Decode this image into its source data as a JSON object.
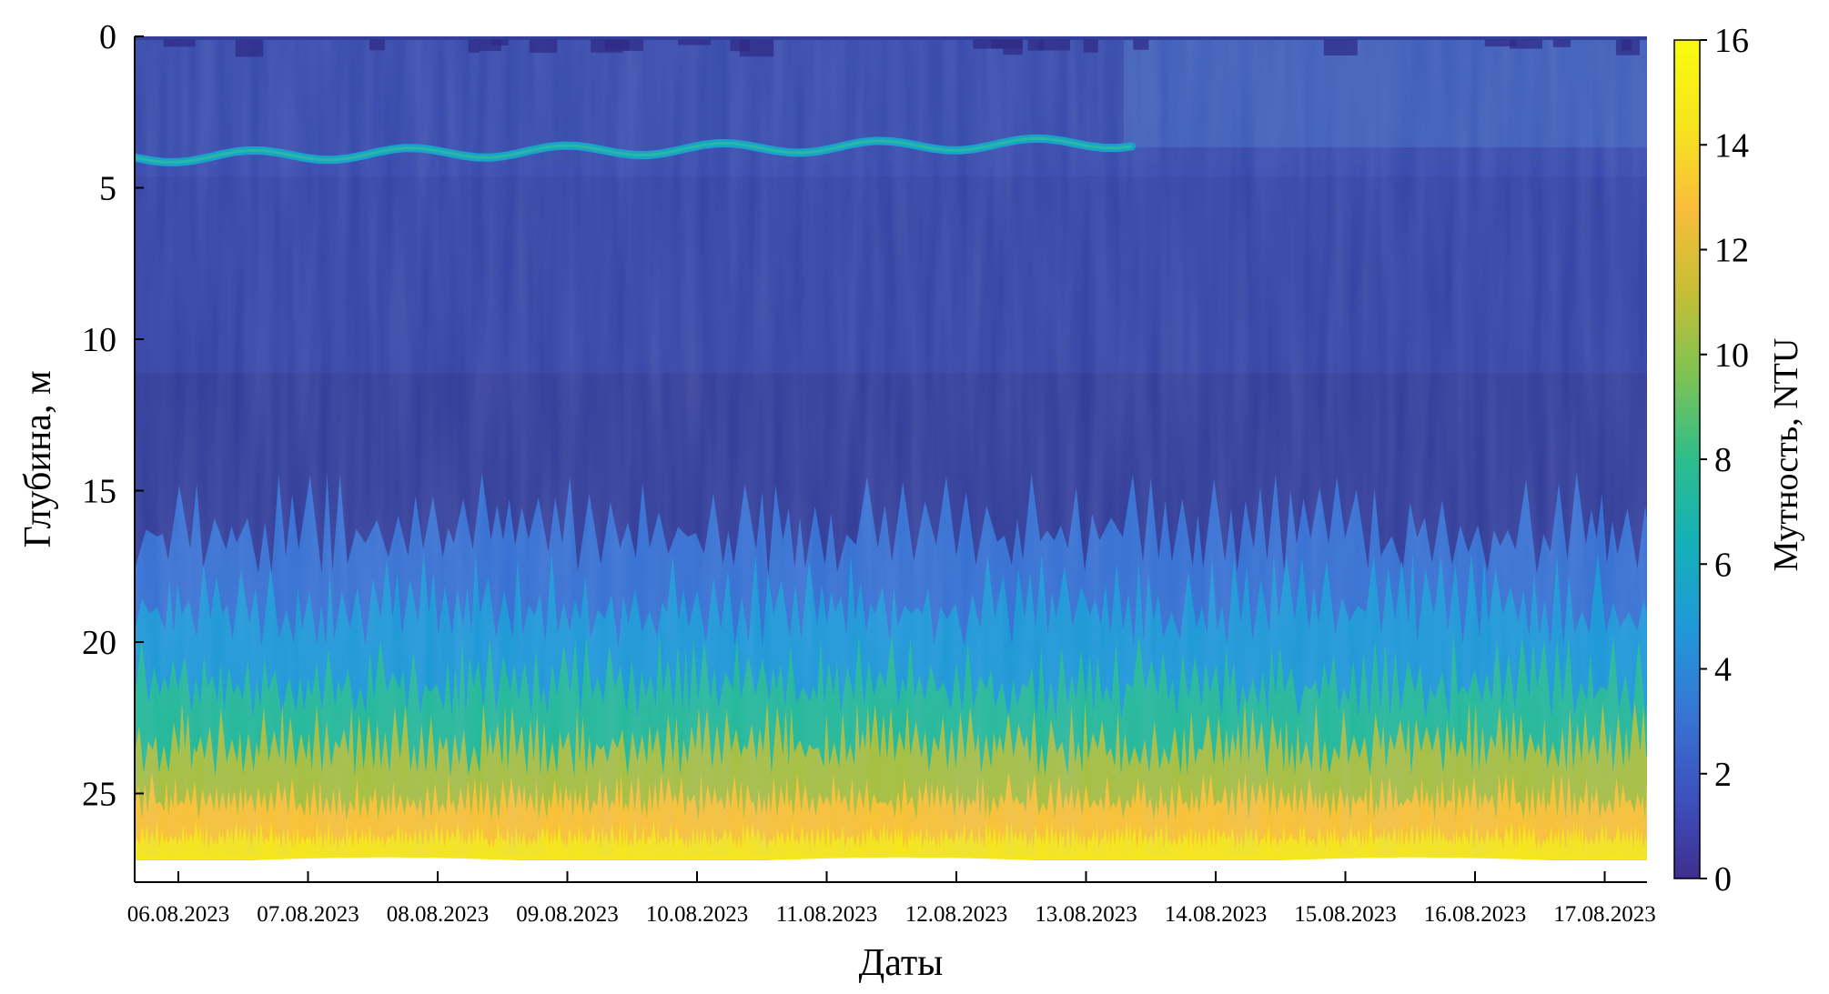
{
  "chart_data": {
    "type": "heatmap",
    "title": "",
    "xlabel": "Даты",
    "ylabel": "Глубина, м",
    "x_ticks": [
      "06.08.2023",
      "07.08.2023",
      "08.08.2023",
      "09.08.2023",
      "10.08.2023",
      "11.08.2023",
      "12.08.2023",
      "13.08.2023",
      "14.08.2023",
      "15.08.2023",
      "16.08.2023",
      "17.08.2023"
    ],
    "y_ticks": [
      "0",
      "5",
      "10",
      "15",
      "20",
      "25"
    ],
    "y_range": [
      0,
      28
    ],
    "y_direction": "downward",
    "colorbar": {
      "label": "Мутность, NTU",
      "range": [
        0,
        16
      ],
      "ticks": [
        "0",
        "2",
        "4",
        "6",
        "8",
        "10",
        "12",
        "14",
        "16"
      ],
      "colormap": [
        "#3e2f8f",
        "#3d52c0",
        "#3776d6",
        "#1f99d8",
        "#14b0b8",
        "#2dbd8c",
        "#7ec354",
        "#c6be35",
        "#f9bd3b",
        "#f6e51d",
        "#f9fb0e"
      ]
    },
    "features": {
      "surface_turbidity_ntu": 1.5,
      "mid_column_turbidity_ntu": 1.0,
      "bottom_turbidity_ntu_range": [
        8,
        14
      ],
      "turbid_layer": {
        "depth_m": [
          3.5,
          4.0
        ],
        "turbidity_ntu": 5.5,
        "from": "06.08.2023",
        "to": "13.08.2023"
      },
      "bottom_depth_m": 27.2
    },
    "grid": false,
    "legend": "colorbar-right"
  }
}
